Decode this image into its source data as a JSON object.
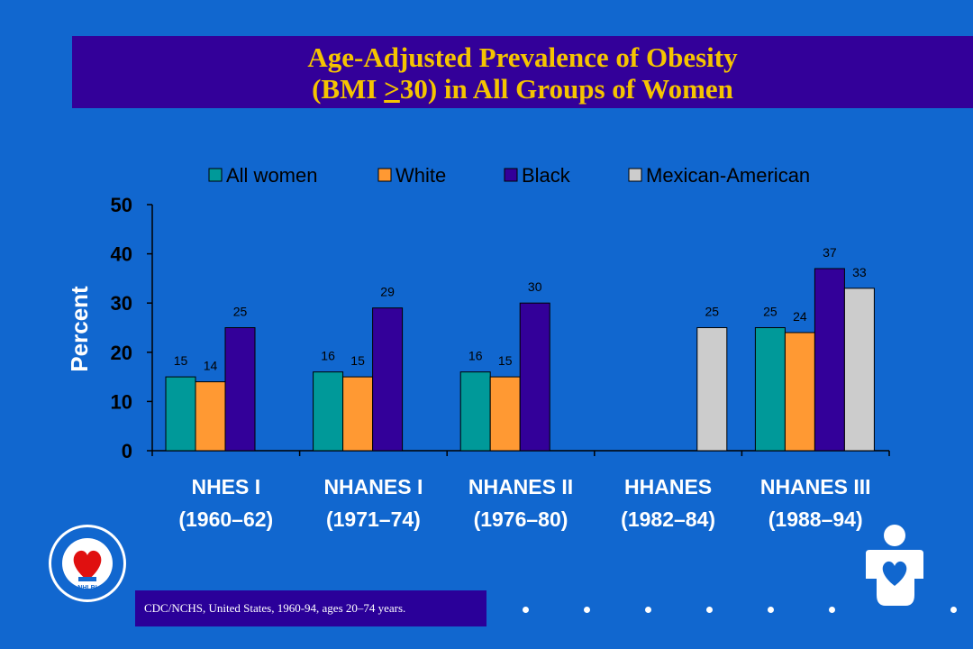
{
  "title": {
    "line1": "Age-Adjusted Prevalence of Obesity",
    "line2_prefix": "(BMI ",
    "line2_ge": ">",
    "line2_suffix": "30) in All Groups of Women"
  },
  "colors": {
    "background": "#1167cf",
    "title_band": "#330099",
    "title_text": "#f5c400",
    "all_women": "#009999",
    "white": "#ff9933",
    "black": "#330099",
    "mexican_american": "#cccccc"
  },
  "chart_data": {
    "type": "bar",
    "categories": [
      {
        "name": "NHES I",
        "years": "(1960–62)"
      },
      {
        "name": "NHANES I",
        "years": "(1971–74)"
      },
      {
        "name": "NHANES II",
        "years": "(1976–80)"
      },
      {
        "name": "HHANES",
        "years": "(1982–84)"
      },
      {
        "name": "NHANES III",
        "years": "(1988–94)"
      }
    ],
    "series": [
      {
        "name": "All women",
        "color": "#009999",
        "values": [
          15,
          16,
          16,
          null,
          25
        ]
      },
      {
        "name": "White",
        "color": "#ff9933",
        "values": [
          14,
          15,
          15,
          null,
          24
        ]
      },
      {
        "name": "Black",
        "color": "#330099",
        "values": [
          25,
          29,
          30,
          null,
          37
        ]
      },
      {
        "name": "Mexican-American",
        "color": "#cccccc",
        "values": [
          null,
          null,
          null,
          25,
          33
        ]
      }
    ],
    "ylabel": "Percent",
    "ylim": [
      0,
      50
    ],
    "yticks": [
      0,
      10,
      20,
      30,
      40,
      50
    ],
    "legend_position": "top",
    "grid": false
  },
  "footer": {
    "source": "CDC/NCHS, United States, 1960-94, ages 20–74 years.",
    "seal_text": "NHLBI"
  }
}
